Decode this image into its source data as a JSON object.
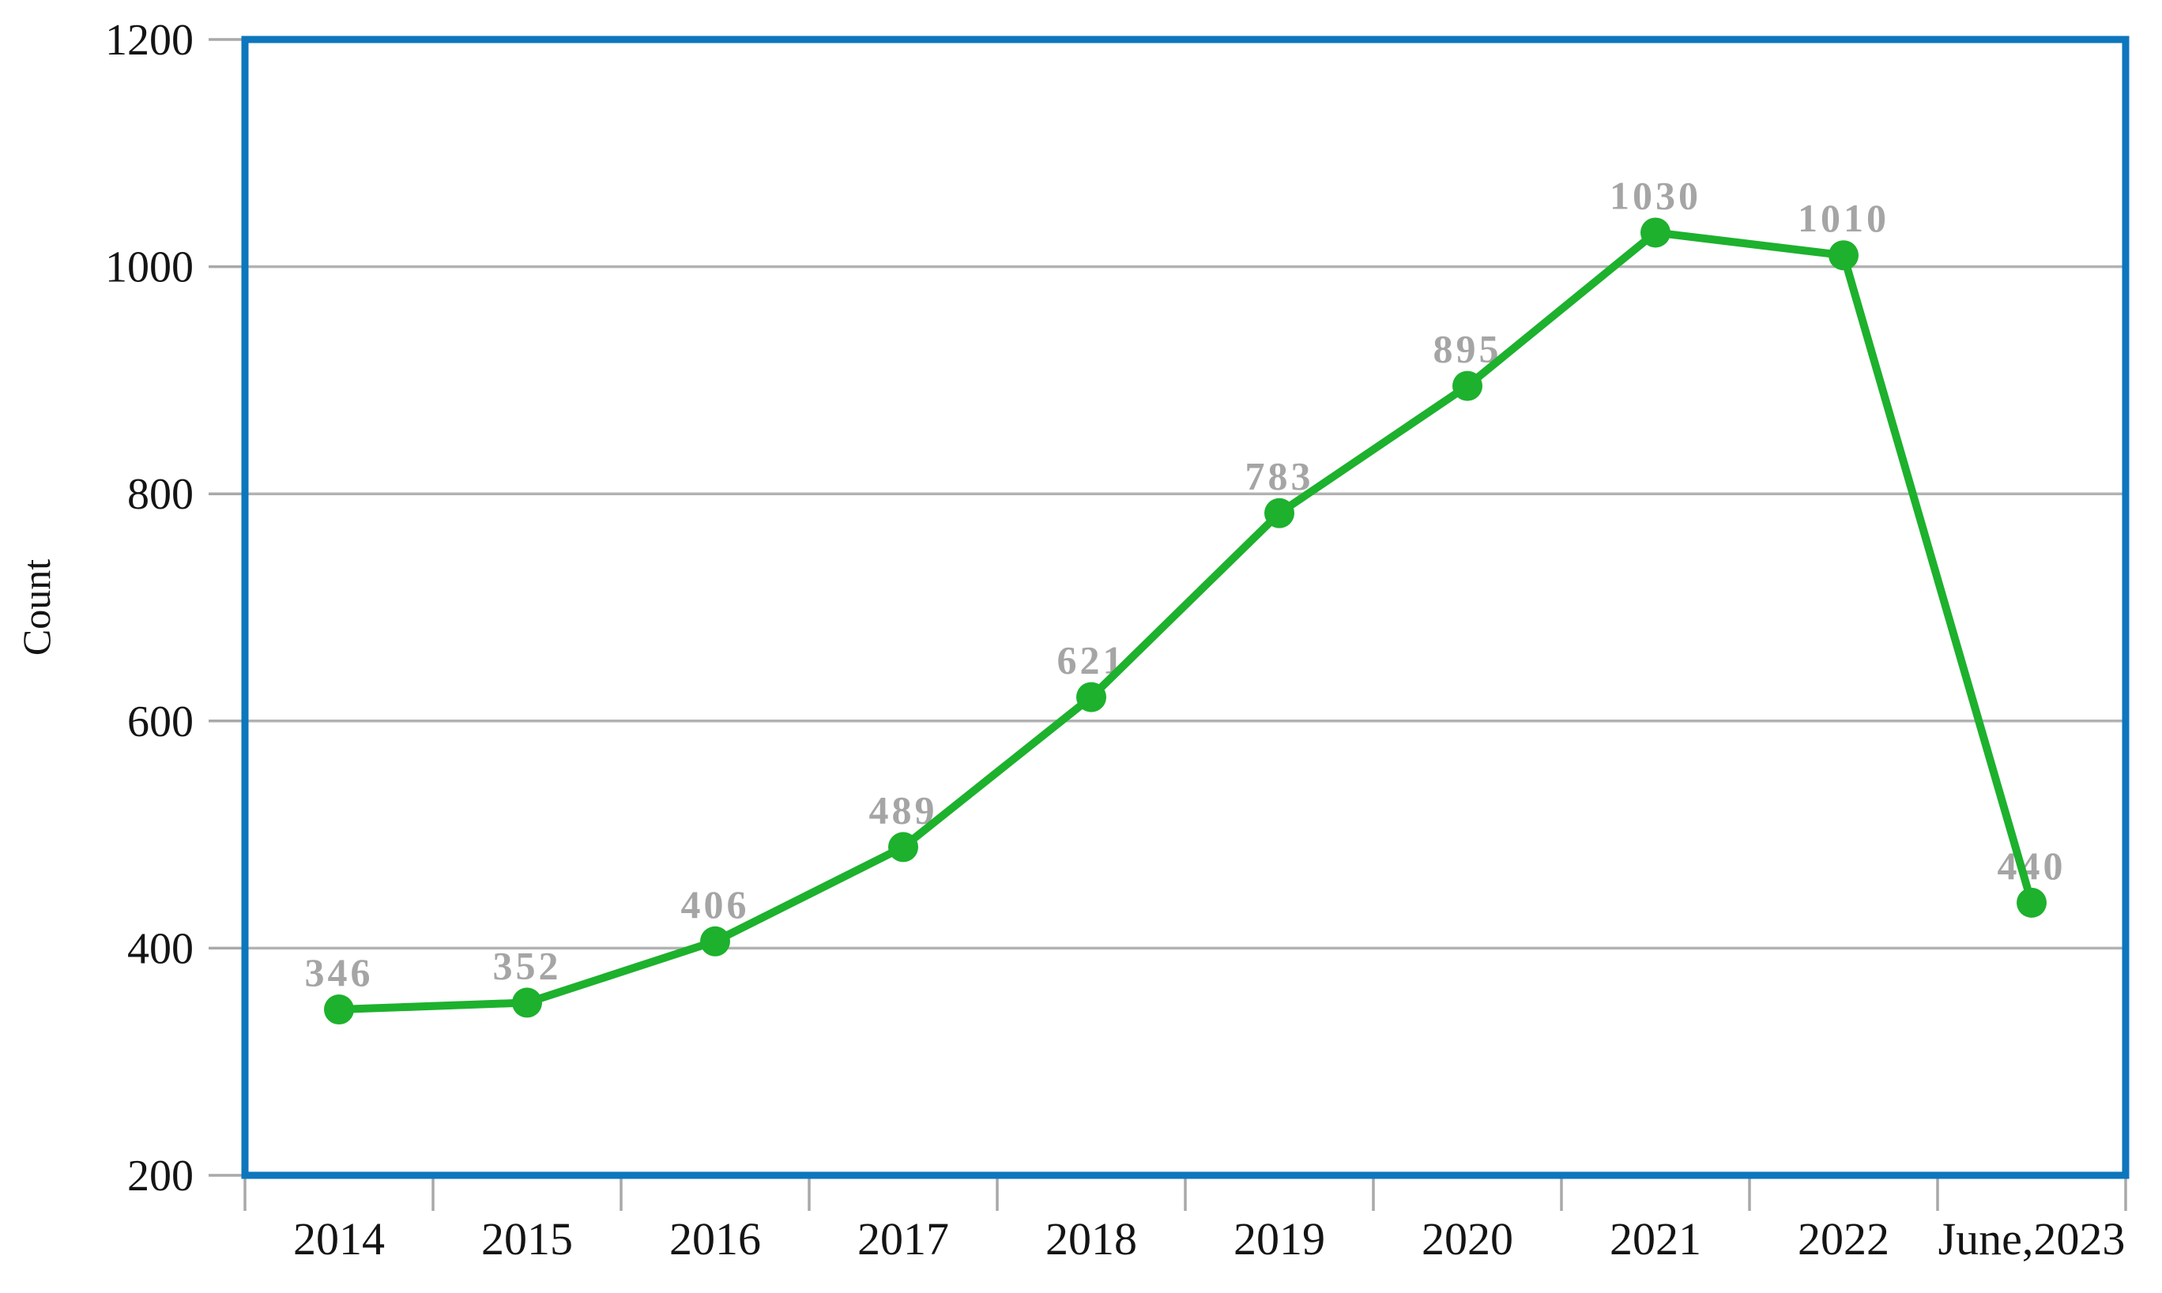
{
  "chart_data": {
    "type": "line",
    "title": "",
    "xlabel": "",
    "ylabel": "Count",
    "categories": [
      "2014",
      "2015",
      "2016",
      "2017",
      "2018",
      "2019",
      "2020",
      "2021",
      "2022",
      "June,2023"
    ],
    "values": [
      346,
      352,
      406,
      489,
      621,
      783,
      895,
      1030,
      1010,
      440
    ],
    "yticks": [
      200,
      400,
      600,
      800,
      1000,
      1200
    ],
    "ylim": [
      200,
      1200
    ],
    "grid": "horizontal",
    "legend_position": "none",
    "marker_shape": "circle",
    "data_labels_visible": true,
    "colors": {
      "line": "#1db12d",
      "marker": "#1db12d",
      "data_label": "#a5a5a5",
      "axis_text": "#141414",
      "gridline": "#b2b2b2",
      "tick": "#a9a9a9",
      "plot_border": "#0d76bd",
      "background": "#ffffff"
    }
  }
}
